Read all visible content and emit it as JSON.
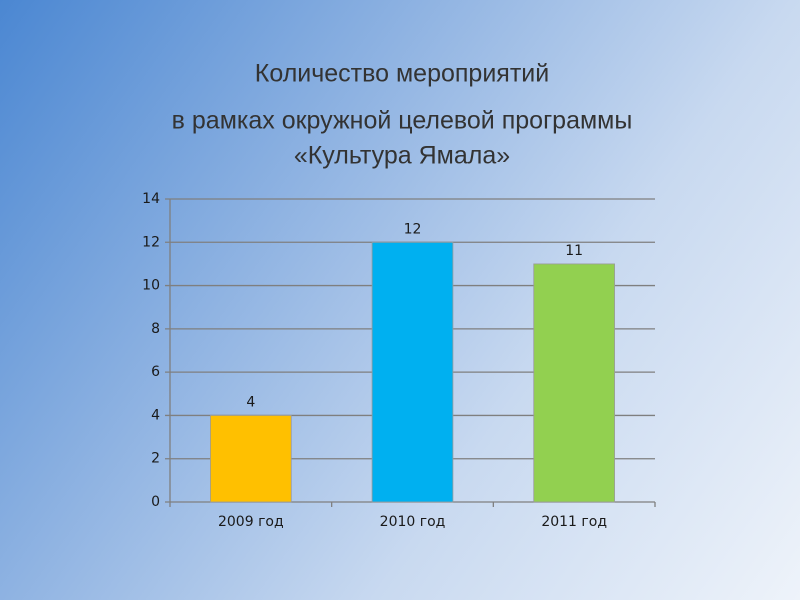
{
  "chart_data": {
    "type": "bar",
    "title": [
      "Количество мероприятий",
      "в рамках окружной целевой программы",
      "«Культура Ямала»"
    ],
    "categories": [
      "2009 год",
      "2010 год",
      "2011 год"
    ],
    "values": [
      4,
      12,
      11
    ],
    "colors": [
      "#ffc000",
      "#00b0f0",
      "#92d050"
    ],
    "ylim": [
      0,
      14
    ],
    "yticks": [
      0,
      2,
      4,
      6,
      8,
      10,
      12,
      14
    ],
    "grid": true
  }
}
